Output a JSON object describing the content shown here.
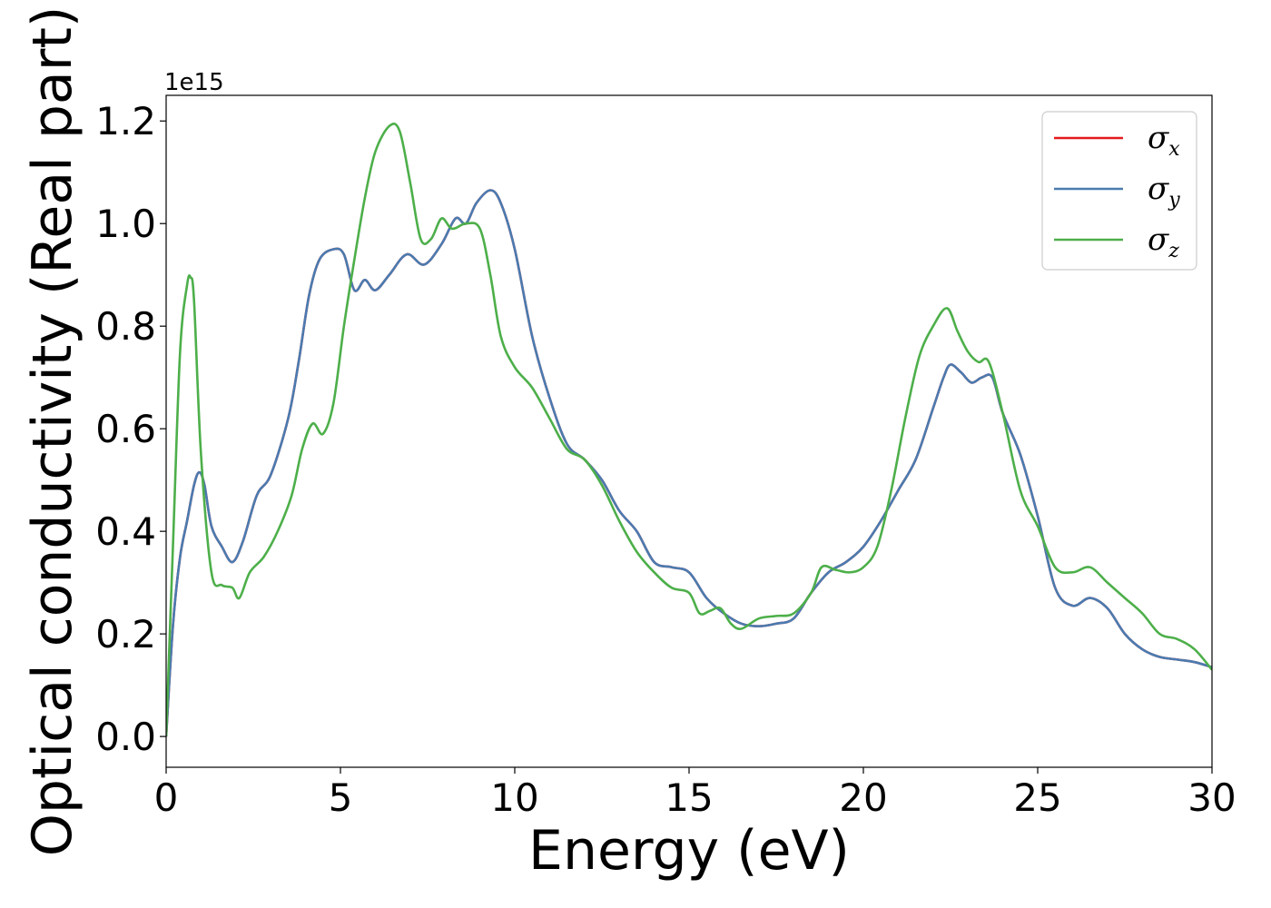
{
  "chart_data": {
    "type": "line",
    "xlabel": "Energy (eV)",
    "ylabel": "Optical conductivity (Real part)",
    "y_offset_text": "1e15",
    "xlim": [
      0,
      30
    ],
    "ylim": [
      -0.06,
      1.25
    ],
    "x_ticks": [
      0,
      5,
      10,
      15,
      20,
      25,
      30
    ],
    "x_tick_labels": [
      "0",
      "5",
      "10",
      "15",
      "20",
      "25",
      "30"
    ],
    "y_ticks": [
      0.0,
      0.2,
      0.4,
      0.6,
      0.8,
      1.0,
      1.2
    ],
    "y_tick_labels": [
      "0.0",
      "0.2",
      "0.4",
      "0.6",
      "0.8",
      "1.0",
      "1.2"
    ],
    "grid": false,
    "legend_position": "top-right",
    "series": [
      {
        "name": "σx",
        "symbol": "σ",
        "subscript": "x",
        "color": "#e41a1c",
        "x": [
          0,
          0.2,
          0.4,
          0.6,
          0.8,
          0.95,
          1.1,
          1.3,
          1.6,
          1.9,
          2.2,
          2.6,
          3.0,
          3.5,
          3.8,
          4.1,
          4.4,
          4.8,
          5.1,
          5.4,
          5.7,
          6.0,
          6.4,
          6.9,
          7.4,
          7.9,
          8.3,
          8.6,
          8.9,
          9.3,
          9.6,
          10.0,
          10.5,
          11.0,
          11.5,
          12.0,
          12.5,
          13.0,
          13.5,
          14.0,
          14.5,
          15.0,
          15.5,
          16.0,
          16.5,
          17.0,
          17.5,
          18.0,
          18.5,
          19.0,
          19.5,
          20.0,
          20.5,
          21.0,
          21.5,
          22.0,
          22.3,
          22.5,
          22.8,
          23.1,
          23.4,
          23.7,
          24.0,
          24.5,
          25.0,
          25.5,
          26.0,
          26.5,
          27.0,
          27.5,
          28.0,
          28.5,
          29.0,
          29.5,
          30.0
        ],
        "y": [
          0.0,
          0.22,
          0.35,
          0.42,
          0.49,
          0.515,
          0.49,
          0.41,
          0.37,
          0.34,
          0.38,
          0.47,
          0.51,
          0.62,
          0.73,
          0.86,
          0.93,
          0.95,
          0.94,
          0.87,
          0.89,
          0.87,
          0.9,
          0.94,
          0.92,
          0.96,
          1.01,
          1.0,
          1.04,
          1.065,
          1.04,
          0.95,
          0.78,
          0.66,
          0.57,
          0.54,
          0.5,
          0.44,
          0.4,
          0.34,
          0.33,
          0.32,
          0.27,
          0.24,
          0.22,
          0.215,
          0.22,
          0.23,
          0.28,
          0.32,
          0.34,
          0.37,
          0.42,
          0.48,
          0.54,
          0.64,
          0.7,
          0.725,
          0.71,
          0.69,
          0.7,
          0.7,
          0.63,
          0.55,
          0.43,
          0.29,
          0.255,
          0.27,
          0.25,
          0.2,
          0.17,
          0.155,
          0.15,
          0.145,
          0.135
        ]
      },
      {
        "name": "σy",
        "symbol": "σ",
        "subscript": "y",
        "color": "#4a7bb0",
        "x": [
          0,
          0.2,
          0.4,
          0.6,
          0.8,
          0.95,
          1.1,
          1.3,
          1.6,
          1.9,
          2.2,
          2.6,
          3.0,
          3.5,
          3.8,
          4.1,
          4.4,
          4.8,
          5.1,
          5.4,
          5.7,
          6.0,
          6.4,
          6.9,
          7.4,
          7.9,
          8.3,
          8.6,
          8.9,
          9.3,
          9.6,
          10.0,
          10.5,
          11.0,
          11.5,
          12.0,
          12.5,
          13.0,
          13.5,
          14.0,
          14.5,
          15.0,
          15.5,
          16.0,
          16.5,
          17.0,
          17.5,
          18.0,
          18.5,
          19.0,
          19.5,
          20.0,
          20.5,
          21.0,
          21.5,
          22.0,
          22.3,
          22.5,
          22.8,
          23.1,
          23.4,
          23.7,
          24.0,
          24.5,
          25.0,
          25.5,
          26.0,
          26.5,
          27.0,
          27.5,
          28.0,
          28.5,
          29.0,
          29.5,
          30.0
        ],
        "y": [
          0.0,
          0.22,
          0.35,
          0.42,
          0.49,
          0.515,
          0.49,
          0.41,
          0.37,
          0.34,
          0.38,
          0.47,
          0.51,
          0.62,
          0.73,
          0.86,
          0.93,
          0.95,
          0.94,
          0.87,
          0.89,
          0.87,
          0.9,
          0.94,
          0.92,
          0.96,
          1.01,
          1.0,
          1.04,
          1.065,
          1.04,
          0.95,
          0.78,
          0.66,
          0.57,
          0.54,
          0.5,
          0.44,
          0.4,
          0.34,
          0.33,
          0.32,
          0.27,
          0.24,
          0.22,
          0.215,
          0.22,
          0.23,
          0.28,
          0.32,
          0.34,
          0.37,
          0.42,
          0.48,
          0.54,
          0.64,
          0.7,
          0.725,
          0.71,
          0.69,
          0.7,
          0.7,
          0.63,
          0.55,
          0.43,
          0.29,
          0.255,
          0.27,
          0.25,
          0.2,
          0.17,
          0.155,
          0.15,
          0.145,
          0.135
        ]
      },
      {
        "name": "σz",
        "symbol": "σ",
        "subscript": "z",
        "color": "#4daf4a",
        "x": [
          0,
          0.2,
          0.4,
          0.6,
          0.7,
          0.8,
          1.0,
          1.3,
          1.6,
          1.9,
          2.1,
          2.4,
          2.8,
          3.2,
          3.6,
          3.9,
          4.2,
          4.5,
          4.8,
          5.1,
          5.4,
          5.7,
          6.0,
          6.4,
          6.7,
          7.0,
          7.3,
          7.6,
          7.9,
          8.2,
          8.6,
          9.0,
          9.3,
          9.6,
          10.0,
          10.5,
          11.0,
          11.5,
          12.0,
          12.5,
          13.0,
          13.5,
          14.0,
          14.5,
          15.0,
          15.3,
          15.6,
          15.9,
          16.2,
          16.5,
          17.0,
          17.5,
          18.0,
          18.5,
          18.8,
          19.2,
          19.6,
          20.0,
          20.4,
          20.8,
          21.2,
          21.6,
          22.0,
          22.4,
          22.7,
          23.0,
          23.3,
          23.6,
          24.0,
          24.5,
          25.0,
          25.5,
          26.0,
          26.5,
          27.0,
          27.5,
          28.0,
          28.5,
          29.0,
          29.5,
          30.0
        ],
        "y": [
          0.0,
          0.38,
          0.75,
          0.88,
          0.895,
          0.85,
          0.55,
          0.32,
          0.295,
          0.29,
          0.27,
          0.32,
          0.35,
          0.4,
          0.47,
          0.56,
          0.61,
          0.59,
          0.65,
          0.8,
          0.93,
          1.05,
          1.14,
          1.19,
          1.18,
          1.08,
          0.97,
          0.97,
          1.01,
          0.99,
          1.0,
          0.99,
          0.9,
          0.78,
          0.72,
          0.68,
          0.62,
          0.56,
          0.54,
          0.49,
          0.42,
          0.36,
          0.32,
          0.29,
          0.28,
          0.24,
          0.245,
          0.25,
          0.22,
          0.21,
          0.23,
          0.235,
          0.24,
          0.28,
          0.33,
          0.325,
          0.32,
          0.33,
          0.37,
          0.48,
          0.62,
          0.74,
          0.8,
          0.835,
          0.79,
          0.75,
          0.73,
          0.73,
          0.63,
          0.48,
          0.41,
          0.33,
          0.32,
          0.33,
          0.3,
          0.27,
          0.24,
          0.2,
          0.19,
          0.17,
          0.13
        ]
      }
    ]
  }
}
